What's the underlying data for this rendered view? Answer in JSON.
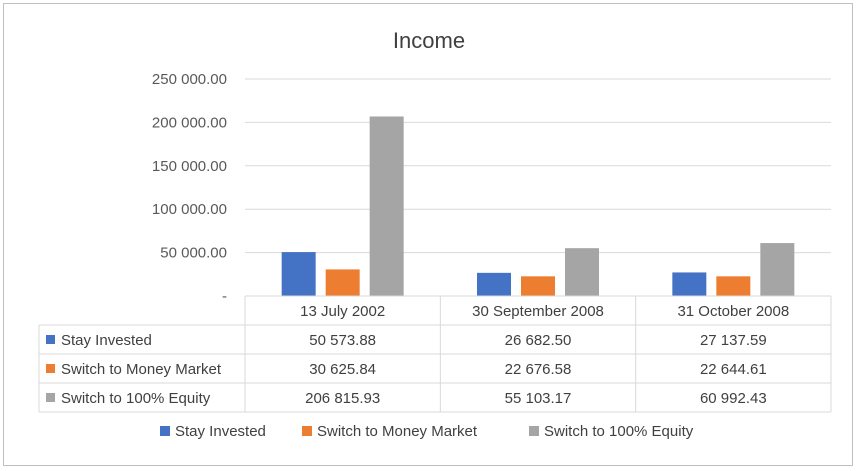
{
  "chart_data": {
    "type": "bar",
    "title": "Income",
    "categories": [
      "13 July 2002",
      "30 September 2008",
      "31 October 2008"
    ],
    "series": [
      {
        "name": "Stay Invested",
        "color": "#4472c4",
        "values": [
          50573.88,
          26682.5,
          27137.59
        ],
        "labels": [
          "50 573.88",
          "26 682.50",
          "27 137.59"
        ]
      },
      {
        "name": "Switch to Money Market",
        "color": "#ed7d31",
        "values": [
          30625.84,
          22676.58,
          22644.61
        ],
        "labels": [
          "30 625.84",
          "22 676.58",
          "22 644.61"
        ]
      },
      {
        "name": "Switch to 100% Equity",
        "color": "#a5a5a5",
        "values": [
          206815.93,
          55103.17,
          60992.43
        ],
        "labels": [
          "206 815.93",
          "55 103.17",
          "60 992.43"
        ]
      }
    ],
    "ylim": [
      0,
      250000
    ],
    "yticks": [
      0,
      50000,
      100000,
      150000,
      200000,
      250000
    ],
    "ytick_labels": [
      "-",
      "50 000.00",
      "100 000.00",
      "150 000.00",
      "200 000.00",
      "250 000.00"
    ],
    "grid": true,
    "legend_position": "bottom",
    "data_table": true
  }
}
